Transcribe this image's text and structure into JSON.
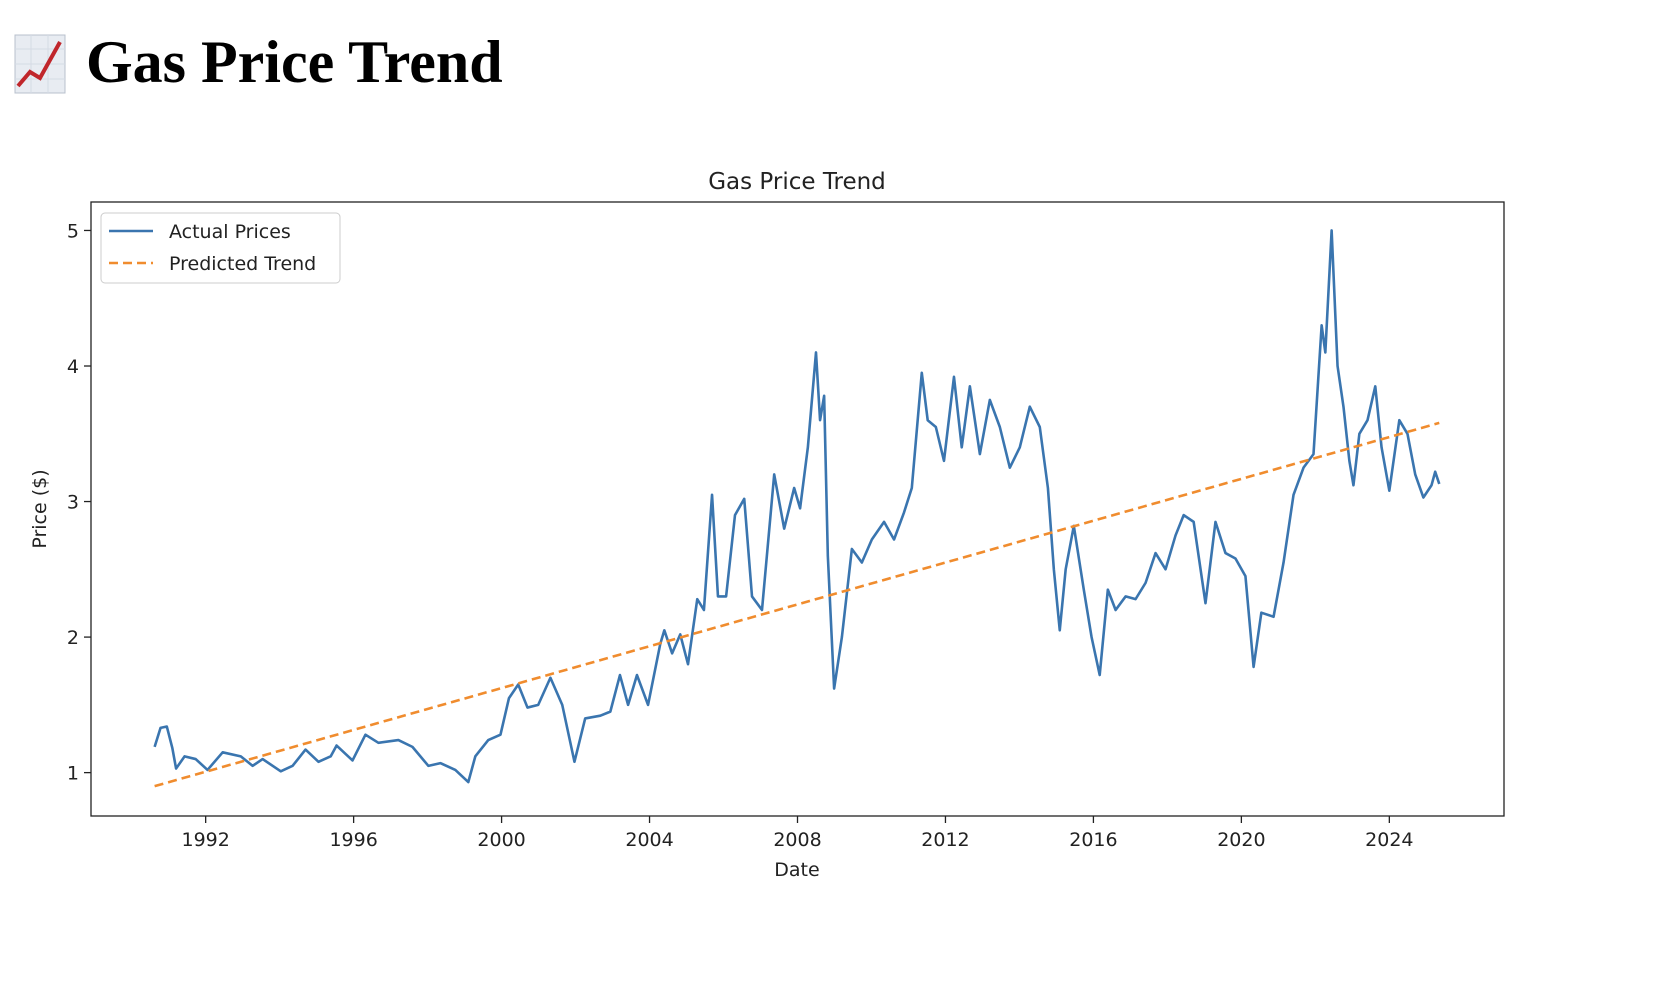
{
  "page": {
    "heading": "Gas Price Trend"
  },
  "chart_data": {
    "type": "line",
    "title": "Gas Price Trend",
    "x_label": "Date",
    "y_label": "Price ($)",
    "xlim": [
      1988.9,
      2027.1
    ],
    "ylim": [
      0.68,
      5.21
    ],
    "xticks": [
      1992,
      1996,
      2000,
      2004,
      2008,
      2012,
      2016,
      2020,
      2024
    ],
    "yticks": [
      1,
      2,
      3,
      4,
      5
    ],
    "grid": false,
    "legend": "upper left",
    "series": [
      {
        "name": "Actual Prices",
        "color": "#3a75af",
        "style": "solid",
        "x": [
          1990.62,
          1990.78,
          1990.95,
          1991.1,
          1991.2,
          1991.43,
          1991.73,
          1992.05,
          1992.46,
          1992.95,
          1993.27,
          1993.54,
          1994.03,
          1994.35,
          1994.7,
          1995.05,
          1995.38,
          1995.54,
          1995.97,
          1996.32,
          1996.67,
          1997.21,
          1997.59,
          1998.02,
          1998.35,
          1998.75,
          1999.1,
          1999.29,
          1999.64,
          1999.97,
          2000.2,
          2000.45,
          2000.7,
          2000.99,
          2001.32,
          2001.64,
          2001.97,
          2002.26,
          2002.67,
          2002.94,
          2003.2,
          2003.42,
          2003.66,
          2003.96,
          2004.29,
          2004.4,
          2004.61,
          2004.83,
          2005.04,
          2005.29,
          2005.47,
          2005.69,
          2005.85,
          2006.07,
          2006.31,
          2006.56,
          2006.77,
          2007.04,
          2007.37,
          2007.64,
          2007.91,
          2008.07,
          2008.28,
          2008.5,
          2008.61,
          2008.72,
          2008.82,
          2008.99,
          2009.2,
          2009.47,
          2009.74,
          2010.01,
          2010.34,
          2010.61,
          2010.88,
          2011.09,
          2011.36,
          2011.52,
          2011.74,
          2011.96,
          2012.23,
          2012.44,
          2012.66,
          2012.93,
          2013.2,
          2013.47,
          2013.74,
          2014.01,
          2014.28,
          2014.55,
          2014.77,
          2014.93,
          2015.09,
          2015.25,
          2015.47,
          2015.74,
          2015.95,
          2016.17,
          2016.39,
          2016.6,
          2016.87,
          2017.14,
          2017.41,
          2017.68,
          2017.95,
          2018.22,
          2018.44,
          2018.71,
          2019.03,
          2019.3,
          2019.57,
          2019.84,
          2020.11,
          2020.33,
          2020.54,
          2020.87,
          2021.14,
          2021.41,
          2021.68,
          2021.95,
          2022.17,
          2022.27,
          2022.44,
          2022.6,
          2022.76,
          2022.92,
          2023.03,
          2023.19,
          2023.41,
          2023.62,
          2023.79,
          2024.0,
          2024.27,
          2024.49,
          2024.7,
          2024.92,
          2025.14,
          2025.24,
          2025.35
        ],
        "values": [
          1.19,
          1.33,
          1.34,
          1.18,
          1.03,
          1.12,
          1.1,
          1.02,
          1.15,
          1.12,
          1.05,
          1.1,
          1.01,
          1.05,
          1.17,
          1.08,
          1.12,
          1.2,
          1.09,
          1.28,
          1.22,
          1.24,
          1.19,
          1.05,
          1.07,
          1.02,
          0.93,
          1.12,
          1.24,
          1.28,
          1.55,
          1.65,
          1.48,
          1.5,
          1.7,
          1.5,
          1.08,
          1.4,
          1.42,
          1.45,
          1.72,
          1.5,
          1.72,
          1.5,
          1.95,
          2.05,
          1.88,
          2.02,
          1.8,
          2.28,
          2.2,
          3.05,
          2.3,
          2.3,
          2.9,
          3.02,
          2.3,
          2.2,
          3.2,
          2.8,
          3.1,
          2.95,
          3.4,
          4.1,
          3.6,
          3.78,
          2.6,
          1.62,
          2.0,
          2.65,
          2.55,
          2.72,
          2.85,
          2.72,
          2.92,
          3.1,
          3.95,
          3.6,
          3.55,
          3.3,
          3.92,
          3.4,
          3.85,
          3.35,
          3.75,
          3.55,
          3.25,
          3.4,
          3.7,
          3.55,
          3.1,
          2.5,
          2.05,
          2.5,
          2.82,
          2.35,
          2.0,
          1.72,
          2.35,
          2.2,
          2.3,
          2.28,
          2.4,
          2.62,
          2.5,
          2.75,
          2.9,
          2.85,
          2.25,
          2.85,
          2.62,
          2.58,
          2.45,
          1.78,
          2.18,
          2.15,
          2.55,
          3.05,
          3.25,
          3.35,
          4.3,
          4.1,
          5.0,
          4.0,
          3.7,
          3.3,
          3.12,
          3.5,
          3.6,
          3.85,
          3.4,
          3.08,
          3.6,
          3.5,
          3.2,
          3.03,
          3.12,
          3.22,
          3.13
        ]
      },
      {
        "name": "Predicted Trend",
        "color": "#f08c2e",
        "style": "dashed",
        "x": [
          1990.62,
          2025.35
        ],
        "values": [
          0.9,
          3.58
        ]
      }
    ]
  }
}
